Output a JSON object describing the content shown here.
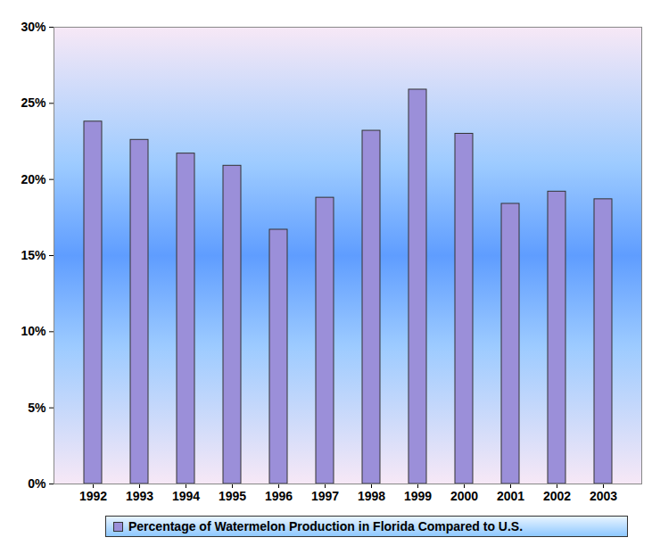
{
  "chart_data": {
    "type": "bar",
    "categories": [
      "1992",
      "1993",
      "1994",
      "1995",
      "1996",
      "1997",
      "1998",
      "1999",
      "2000",
      "2001",
      "2002",
      "2003"
    ],
    "series": [
      {
        "name": "Percentage of Watermelon Production in Florida Compared to U.S.",
        "color": "#9b8fd9",
        "values": [
          23.8,
          22.6,
          21.7,
          20.9,
          16.7,
          18.8,
          23.2,
          25.9,
          23.0,
          18.4,
          19.2,
          18.7
        ]
      }
    ],
    "ylim": [
      0,
      30
    ],
    "yticks": [
      {
        "value": 0,
        "label": "0%"
      },
      {
        "value": 5,
        "label": "5%"
      },
      {
        "value": 10,
        "label": "10%"
      },
      {
        "value": 15,
        "label": "15%"
      },
      {
        "value": 20,
        "label": "20%"
      },
      {
        "value": 25,
        "label": "25%"
      },
      {
        "value": 30,
        "label": "30%"
      }
    ],
    "grid": false,
    "legend": "bottom"
  }
}
